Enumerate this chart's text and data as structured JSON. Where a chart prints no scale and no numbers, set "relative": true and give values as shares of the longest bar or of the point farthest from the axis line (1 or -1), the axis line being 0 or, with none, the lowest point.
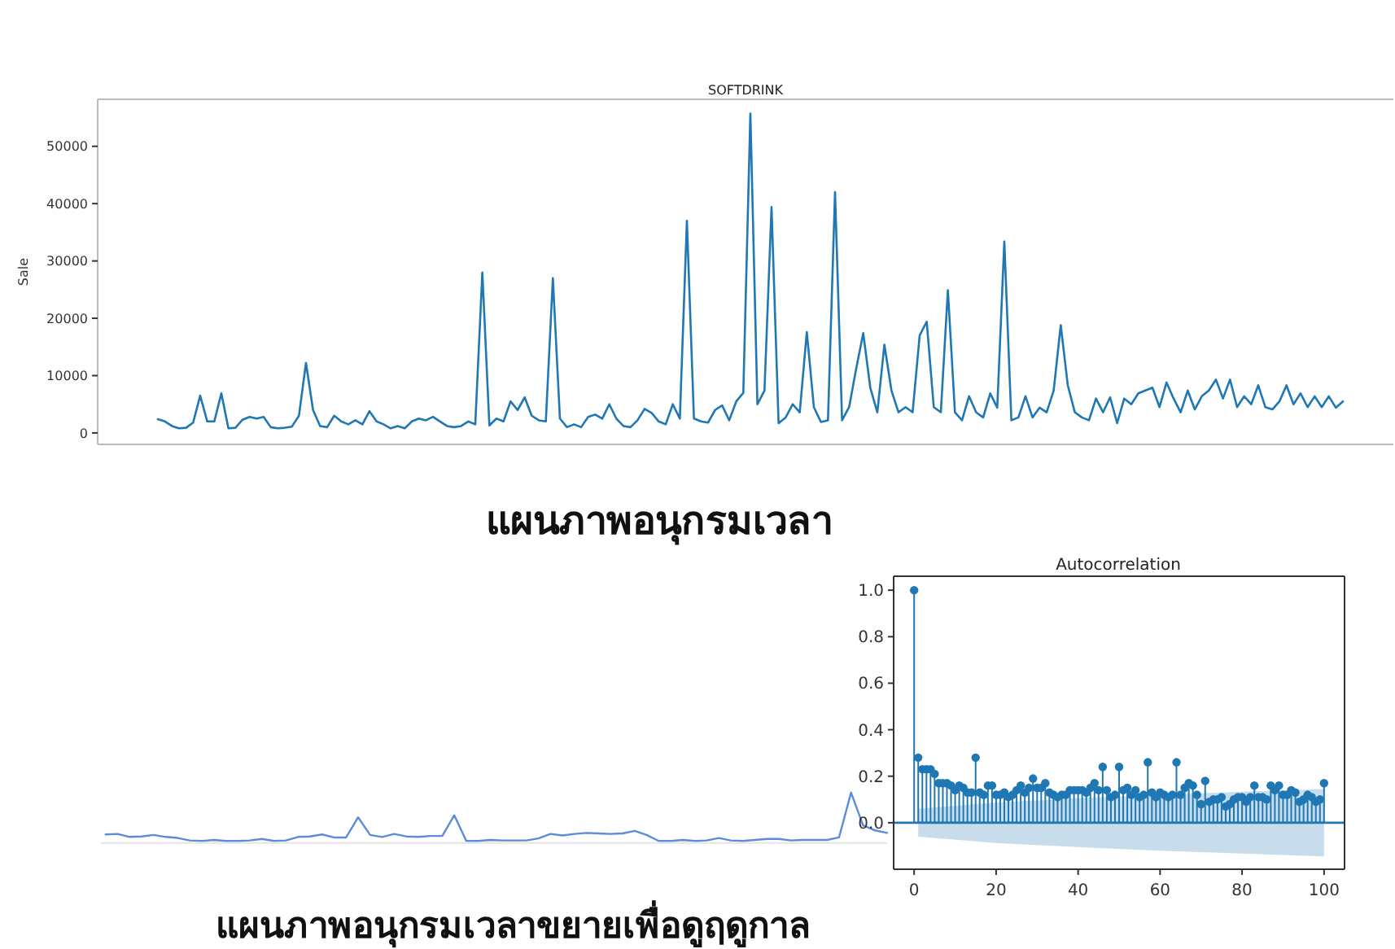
{
  "chart_data": [
    {
      "type": "line",
      "title": "SOFTDRINK",
      "ylabel": "Sale",
      "annotations": [
        "แผนภาพอนุกรมเวลา"
      ],
      "ylim": [
        -2000,
        58200
      ],
      "yticks": [
        0,
        10000,
        20000,
        30000,
        40000,
        50000
      ],
      "tick_labels": "y",
      "categories": [
        null,
        null,
        null,
        null,
        null,
        null,
        null,
        null,
        null,
        null,
        null,
        null,
        null,
        null,
        null,
        null,
        null,
        null,
        null,
        null,
        null,
        null,
        null,
        null,
        null,
        null,
        null,
        null,
        null,
        null,
        null,
        null,
        null,
        null,
        null,
        null,
        null,
        null,
        null,
        null,
        null,
        null,
        null,
        null,
        null,
        null,
        null,
        null,
        null,
        null,
        null,
        null,
        null,
        null,
        null,
        null,
        null,
        null,
        null,
        null,
        null,
        null,
        null,
        null,
        null,
        null,
        null,
        null,
        null,
        null,
        null,
        null,
        null,
        null,
        null,
        null,
        null,
        null,
        null,
        null,
        null,
        null,
        null,
        null,
        null,
        null,
        null,
        null,
        null,
        null,
        null,
        null,
        null,
        null,
        null,
        null,
        null,
        null,
        null,
        null,
        null,
        null,
        null,
        null,
        null,
        null,
        null,
        null,
        null,
        null,
        null,
        null,
        null,
        null,
        null,
        null,
        null,
        null,
        null,
        null,
        null,
        null,
        null,
        null,
        null,
        null,
        null,
        null,
        null,
        null,
        null,
        null,
        null,
        null,
        null,
        null,
        null,
        null,
        null,
        null,
        null,
        null,
        null,
        null,
        null,
        null,
        null,
        null,
        null,
        null,
        null,
        null,
        null,
        null,
        null,
        null,
        null,
        null,
        null,
        null,
        null,
        null,
        null,
        null,
        null,
        null,
        null,
        null,
        null
      ],
      "series": [
        {
          "color": "#1f77b4",
          "values": [
            2400,
            2000,
            1200,
            800,
            900,
            1800,
            6500,
            2000,
            2000,
            6900,
            800,
            900,
            2300,
            2800,
            2500,
            2800,
            1000,
            800,
            900,
            1100,
            3000,
            12200,
            4000,
            1200,
            1000,
            3000,
            2000,
            1500,
            2200,
            1500,
            3800,
            2000,
            1500,
            800,
            1200,
            800,
            2000,
            2500,
            2200,
            2800,
            2000,
            1200,
            1000,
            1200,
            2000,
            1500,
            28000,
            1300,
            2500,
            2000,
            5500,
            4000,
            6200,
            3000,
            2200,
            2000,
            27000,
            2500,
            1000,
            1500,
            1000,
            2800,
            3200,
            2500,
            5000,
            2500,
            1200,
            1000,
            2200,
            4200,
            3500,
            2000,
            1500,
            5000,
            2500,
            37000,
            2500,
            2000,
            1800,
            4000,
            4800,
            2200,
            5500,
            7000,
            55700,
            5000,
            7400,
            39400,
            1700,
            2700,
            5000,
            3600,
            17600,
            4500,
            1900,
            2200,
            42000,
            2200,
            4500,
            11200,
            17400,
            7900,
            3600,
            15400,
            7400,
            3600,
            4500,
            3600,
            17000,
            19400,
            4500,
            3600,
            24900,
            3600,
            2200,
            6400,
            3600,
            2700,
            6900,
            4400,
            33400,
            2200,
            2700,
            6400,
            2700,
            4400,
            3600,
            7400,
            18800,
            8300,
            3600,
            2700,
            2200,
            6000,
            3600,
            6200,
            1700,
            6000,
            5000,
            6900,
            7400,
            7900,
            4500,
            8800,
            6000,
            3600,
            7400,
            4100,
            6400,
            7400,
            9300,
            6000,
            9300,
            4500,
            6400,
            5000,
            8300,
            4500,
            4100,
            5500,
            8300,
            5000,
            6900,
            4500,
            6400,
            4500,
            6400,
            4400,
            5500
          ]
        }
      ]
    },
    {
      "type": "line",
      "relative": true,
      "tick_labels": false,
      "annotations": [
        "แผนภาพอนุกรมเวลาขยายเพื่อดูฤดูกาล"
      ],
      "categories": [
        null,
        null,
        null,
        null,
        null,
        null,
        null,
        null,
        null,
        null,
        null,
        null,
        null,
        null,
        null,
        null,
        null,
        null,
        null,
        null,
        null,
        null,
        null,
        null,
        null,
        null,
        null,
        null,
        null,
        null,
        null,
        null,
        null,
        null,
        null,
        null,
        null,
        null,
        null,
        null,
        null,
        null,
        null,
        null,
        null,
        null,
        null,
        null,
        null,
        null,
        null,
        null,
        null,
        null,
        null,
        null,
        null,
        null,
        null,
        null,
        null,
        null,
        null,
        null,
        null,
        null
      ],
      "series": [
        {
          "color": "#5b8bd9",
          "values": [
            0.17,
            0.18,
            0.12,
            0.13,
            0.16,
            0.12,
            0.1,
            0.05,
            0.04,
            0.06,
            0.04,
            0.04,
            0.05,
            0.08,
            0.04,
            0.05,
            0.12,
            0.13,
            0.17,
            0.11,
            0.11,
            0.51,
            0.16,
            0.12,
            0.18,
            0.13,
            0.12,
            0.14,
            0.14,
            0.55,
            0.04,
            0.04,
            0.06,
            0.05,
            0.05,
            0.05,
            0.09,
            0.18,
            0.15,
            0.18,
            0.2,
            0.19,
            0.18,
            0.19,
            0.24,
            0.16,
            0.04,
            0.04,
            0.06,
            0.04,
            0.05,
            0.1,
            0.05,
            0.04,
            0.06,
            0.08,
            0.08,
            0.05,
            0.06,
            0.06,
            0.06,
            0.11,
            1,
            0.35,
            0.25,
            0.2
          ]
        }
      ]
    },
    {
      "type": "lollipop",
      "title": "Autocorrelation",
      "xlim": [
        -5,
        105
      ],
      "ylim": [
        -0.2,
        1.06
      ],
      "xticks": [
        0,
        20,
        40,
        60,
        80,
        100
      ],
      "yticks": [
        {
          "value": 0,
          "label": "0.0"
        },
        0.2,
        0.4,
        0.6,
        0.8,
        {
          "value": 1,
          "label": "1.0"
        }
      ],
      "ref_lines": [
        {
          "axis": "y",
          "value": 0,
          "color": "#1f77b4"
        }
      ],
      "series": [
        {
          "color": "#1f77b4",
          "x": [
            0,
            1,
            2,
            3,
            4,
            5,
            6,
            7,
            8,
            9,
            10,
            11,
            12,
            13,
            14,
            15,
            16,
            17,
            18,
            19,
            20,
            21,
            22,
            23,
            24,
            25,
            26,
            27,
            28,
            29,
            30,
            31,
            32,
            33,
            34,
            35,
            36,
            37,
            38,
            39,
            40,
            41,
            42,
            43,
            44,
            45,
            46,
            47,
            48,
            49,
            50,
            51,
            52,
            53,
            54,
            55,
            56,
            57,
            58,
            59,
            60,
            61,
            62,
            63,
            64,
            65,
            66,
            67,
            68,
            69,
            70,
            71,
            72,
            73,
            74,
            75,
            76,
            77,
            78,
            79,
            80,
            81,
            82,
            83,
            84,
            85,
            86,
            87,
            88,
            89,
            90,
            91,
            92,
            93,
            94,
            95,
            96,
            97,
            98,
            99,
            100
          ],
          "values": [
            1.0,
            0.28,
            0.23,
            0.23,
            0.23,
            0.21,
            0.17,
            0.17,
            0.17,
            0.16,
            0.14,
            0.16,
            0.15,
            0.13,
            0.13,
            0.28,
            0.13,
            0.12,
            0.16,
            0.16,
            0.12,
            0.12,
            0.13,
            0.11,
            0.12,
            0.14,
            0.16,
            0.13,
            0.15,
            0.19,
            0.15,
            0.15,
            0.17,
            0.13,
            0.12,
            0.11,
            0.12,
            0.12,
            0.14,
            0.14,
            0.14,
            0.14,
            0.13,
            0.15,
            0.17,
            0.14,
            0.24,
            0.14,
            0.11,
            0.12,
            0.24,
            0.14,
            0.15,
            0.12,
            0.14,
            0.11,
            0.12,
            0.26,
            0.13,
            0.11,
            0.13,
            0.12,
            0.11,
            0.12,
            0.26,
            0.12,
            0.15,
            0.17,
            0.16,
            0.12,
            0.08,
            0.18,
            0.09,
            0.1,
            0.1,
            0.11,
            0.07,
            0.08,
            0.1,
            0.11,
            0.11,
            0.09,
            0.11,
            0.16,
            0.11,
            0.11,
            0.1,
            0.16,
            0.14,
            0.16,
            0.12,
            0.12,
            0.14,
            0.13,
            0.09,
            0.1,
            0.12,
            0.11,
            0.09,
            0.1,
            0.17
          ]
        },
        {
          "type": "line",
          "color": "#1f77b4",
          "x": [
            1,
            20,
            40,
            60,
            80,
            100
          ],
          "values": [
            0,
            0,
            0,
            0,
            0,
            0
          ],
          "lower": [
            -0.06,
            -0.087,
            -0.105,
            -0.12,
            -0.133,
            -0.145
          ],
          "upper": [
            0.06,
            0.087,
            0.105,
            0.12,
            0.133,
            0.145
          ]
        }
      ]
    }
  ]
}
